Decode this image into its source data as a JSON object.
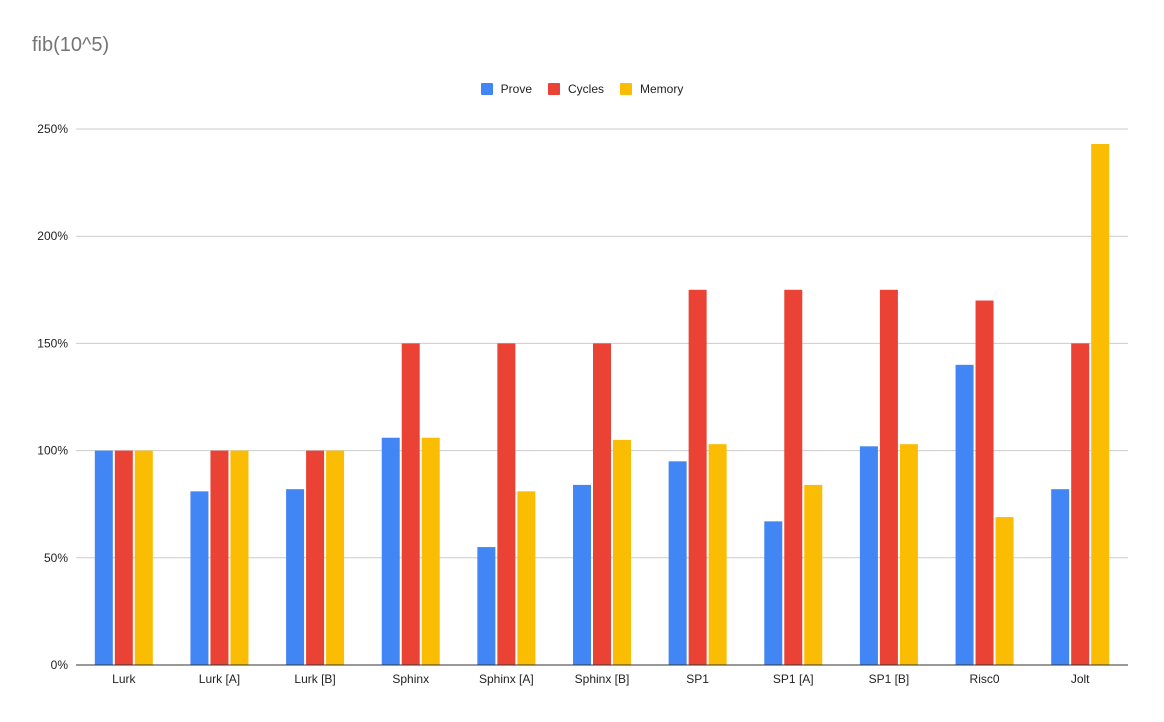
{
  "chart_data": {
    "type": "bar",
    "title": "fib(10^5)",
    "xlabel": "",
    "ylabel": "",
    "categories": [
      "Lurk",
      "Lurk [A]",
      "Lurk [B]",
      "Sphinx",
      "Sphinx [A]",
      "Sphinx [B]",
      "SP1",
      "SP1 [A]",
      "SP1 [B]",
      "Risc0",
      "Jolt"
    ],
    "series": [
      {
        "name": "Prove",
        "color": "#4285f4",
        "values": [
          100,
          81,
          82,
          106,
          55,
          84,
          95,
          67,
          102,
          140,
          82
        ]
      },
      {
        "name": "Cycles",
        "color": "#ea4335",
        "values": [
          100,
          100,
          100,
          150,
          150,
          150,
          175,
          175,
          175,
          170,
          150
        ]
      },
      {
        "name": "Memory",
        "color": "#fbbc04",
        "values": [
          100,
          100,
          100,
          106,
          81,
          105,
          103,
          84,
          103,
          69,
          243
        ]
      }
    ],
    "ylim": [
      0,
      250
    ],
    "yticks": [
      "0%",
      "50%",
      "100%",
      "150%",
      "200%",
      "250%"
    ],
    "grid": true,
    "legend_position": "top-center"
  }
}
